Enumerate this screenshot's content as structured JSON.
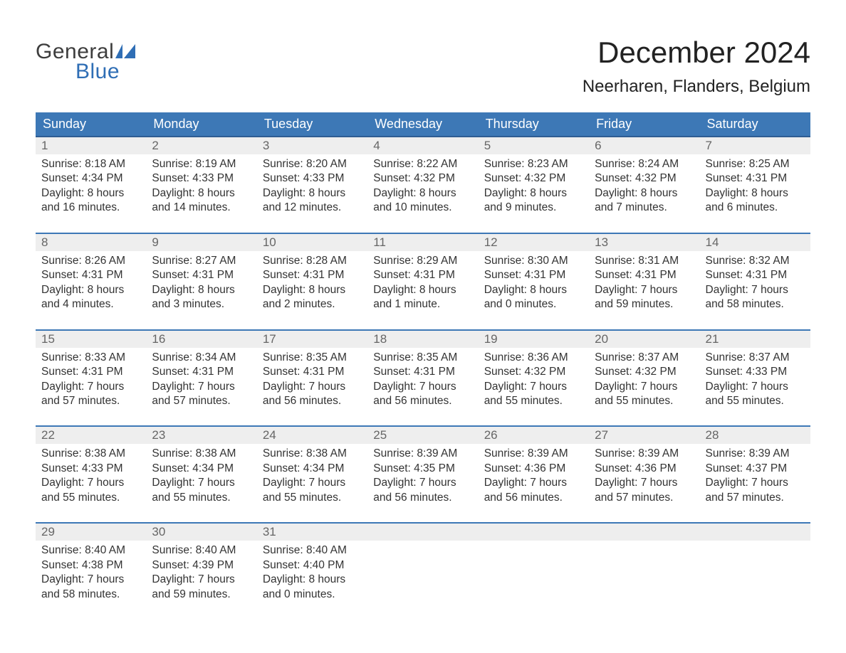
{
  "logo": {
    "text1": "General",
    "text2": "Blue"
  },
  "title": "December 2024",
  "location": "Neerharen, Flanders, Belgium",
  "colors": {
    "header_bg": "#3d78b6",
    "header_text": "#ffffff",
    "week_border": "#3d78b6",
    "daynum_bg": "#eeeeee",
    "daynum_text": "#666666",
    "body_text": "#333333",
    "logo_blue": "#2f6eb5",
    "background": "#ffffff"
  },
  "daysOfWeek": [
    "Sunday",
    "Monday",
    "Tuesday",
    "Wednesday",
    "Thursday",
    "Friday",
    "Saturday"
  ],
  "weeks": [
    [
      {
        "n": "1",
        "sunrise": "Sunrise: 8:18 AM",
        "sunset": "Sunset: 4:34 PM",
        "d1": "Daylight: 8 hours",
        "d2": "and 16 minutes."
      },
      {
        "n": "2",
        "sunrise": "Sunrise: 8:19 AM",
        "sunset": "Sunset: 4:33 PM",
        "d1": "Daylight: 8 hours",
        "d2": "and 14 minutes."
      },
      {
        "n": "3",
        "sunrise": "Sunrise: 8:20 AM",
        "sunset": "Sunset: 4:33 PM",
        "d1": "Daylight: 8 hours",
        "d2": "and 12 minutes."
      },
      {
        "n": "4",
        "sunrise": "Sunrise: 8:22 AM",
        "sunset": "Sunset: 4:32 PM",
        "d1": "Daylight: 8 hours",
        "d2": "and 10 minutes."
      },
      {
        "n": "5",
        "sunrise": "Sunrise: 8:23 AM",
        "sunset": "Sunset: 4:32 PM",
        "d1": "Daylight: 8 hours",
        "d2": "and 9 minutes."
      },
      {
        "n": "6",
        "sunrise": "Sunrise: 8:24 AM",
        "sunset": "Sunset: 4:32 PM",
        "d1": "Daylight: 8 hours",
        "d2": "and 7 minutes."
      },
      {
        "n": "7",
        "sunrise": "Sunrise: 8:25 AM",
        "sunset": "Sunset: 4:31 PM",
        "d1": "Daylight: 8 hours",
        "d2": "and 6 minutes."
      }
    ],
    [
      {
        "n": "8",
        "sunrise": "Sunrise: 8:26 AM",
        "sunset": "Sunset: 4:31 PM",
        "d1": "Daylight: 8 hours",
        "d2": "and 4 minutes."
      },
      {
        "n": "9",
        "sunrise": "Sunrise: 8:27 AM",
        "sunset": "Sunset: 4:31 PM",
        "d1": "Daylight: 8 hours",
        "d2": "and 3 minutes."
      },
      {
        "n": "10",
        "sunrise": "Sunrise: 8:28 AM",
        "sunset": "Sunset: 4:31 PM",
        "d1": "Daylight: 8 hours",
        "d2": "and 2 minutes."
      },
      {
        "n": "11",
        "sunrise": "Sunrise: 8:29 AM",
        "sunset": "Sunset: 4:31 PM",
        "d1": "Daylight: 8 hours",
        "d2": "and 1 minute."
      },
      {
        "n": "12",
        "sunrise": "Sunrise: 8:30 AM",
        "sunset": "Sunset: 4:31 PM",
        "d1": "Daylight: 8 hours",
        "d2": "and 0 minutes."
      },
      {
        "n": "13",
        "sunrise": "Sunrise: 8:31 AM",
        "sunset": "Sunset: 4:31 PM",
        "d1": "Daylight: 7 hours",
        "d2": "and 59 minutes."
      },
      {
        "n": "14",
        "sunrise": "Sunrise: 8:32 AM",
        "sunset": "Sunset: 4:31 PM",
        "d1": "Daylight: 7 hours",
        "d2": "and 58 minutes."
      }
    ],
    [
      {
        "n": "15",
        "sunrise": "Sunrise: 8:33 AM",
        "sunset": "Sunset: 4:31 PM",
        "d1": "Daylight: 7 hours",
        "d2": "and 57 minutes."
      },
      {
        "n": "16",
        "sunrise": "Sunrise: 8:34 AM",
        "sunset": "Sunset: 4:31 PM",
        "d1": "Daylight: 7 hours",
        "d2": "and 57 minutes."
      },
      {
        "n": "17",
        "sunrise": "Sunrise: 8:35 AM",
        "sunset": "Sunset: 4:31 PM",
        "d1": "Daylight: 7 hours",
        "d2": "and 56 minutes."
      },
      {
        "n": "18",
        "sunrise": "Sunrise: 8:35 AM",
        "sunset": "Sunset: 4:31 PM",
        "d1": "Daylight: 7 hours",
        "d2": "and 56 minutes."
      },
      {
        "n": "19",
        "sunrise": "Sunrise: 8:36 AM",
        "sunset": "Sunset: 4:32 PM",
        "d1": "Daylight: 7 hours",
        "d2": "and 55 minutes."
      },
      {
        "n": "20",
        "sunrise": "Sunrise: 8:37 AM",
        "sunset": "Sunset: 4:32 PM",
        "d1": "Daylight: 7 hours",
        "d2": "and 55 minutes."
      },
      {
        "n": "21",
        "sunrise": "Sunrise: 8:37 AM",
        "sunset": "Sunset: 4:33 PM",
        "d1": "Daylight: 7 hours",
        "d2": "and 55 minutes."
      }
    ],
    [
      {
        "n": "22",
        "sunrise": "Sunrise: 8:38 AM",
        "sunset": "Sunset: 4:33 PM",
        "d1": "Daylight: 7 hours",
        "d2": "and 55 minutes."
      },
      {
        "n": "23",
        "sunrise": "Sunrise: 8:38 AM",
        "sunset": "Sunset: 4:34 PM",
        "d1": "Daylight: 7 hours",
        "d2": "and 55 minutes."
      },
      {
        "n": "24",
        "sunrise": "Sunrise: 8:38 AM",
        "sunset": "Sunset: 4:34 PM",
        "d1": "Daylight: 7 hours",
        "d2": "and 55 minutes."
      },
      {
        "n": "25",
        "sunrise": "Sunrise: 8:39 AM",
        "sunset": "Sunset: 4:35 PM",
        "d1": "Daylight: 7 hours",
        "d2": "and 56 minutes."
      },
      {
        "n": "26",
        "sunrise": "Sunrise: 8:39 AM",
        "sunset": "Sunset: 4:36 PM",
        "d1": "Daylight: 7 hours",
        "d2": "and 56 minutes."
      },
      {
        "n": "27",
        "sunrise": "Sunrise: 8:39 AM",
        "sunset": "Sunset: 4:36 PM",
        "d1": "Daylight: 7 hours",
        "d2": "and 57 minutes."
      },
      {
        "n": "28",
        "sunrise": "Sunrise: 8:39 AM",
        "sunset": "Sunset: 4:37 PM",
        "d1": "Daylight: 7 hours",
        "d2": "and 57 minutes."
      }
    ],
    [
      {
        "n": "29",
        "sunrise": "Sunrise: 8:40 AM",
        "sunset": "Sunset: 4:38 PM",
        "d1": "Daylight: 7 hours",
        "d2": "and 58 minutes."
      },
      {
        "n": "30",
        "sunrise": "Sunrise: 8:40 AM",
        "sunset": "Sunset: 4:39 PM",
        "d1": "Daylight: 7 hours",
        "d2": "and 59 minutes."
      },
      {
        "n": "31",
        "sunrise": "Sunrise: 8:40 AM",
        "sunset": "Sunset: 4:40 PM",
        "d1": "Daylight: 8 hours",
        "d2": "and 0 minutes."
      },
      {
        "empty": true
      },
      {
        "empty": true
      },
      {
        "empty": true
      },
      {
        "empty": true
      }
    ]
  ]
}
